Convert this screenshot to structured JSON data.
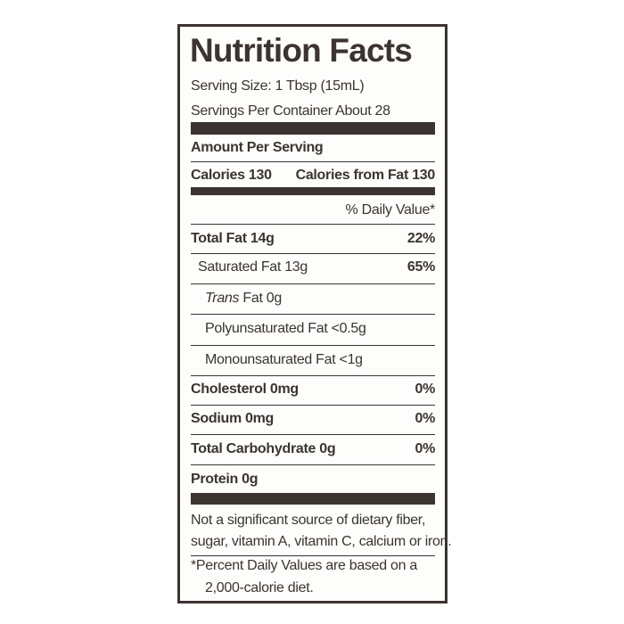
{
  "title": "Nutrition Facts",
  "serving": [
    "Serving Size: 1 Tbsp (15mL)",
    "Servings Per Container About 28"
  ],
  "amount_per_serving": "Amount Per Serving",
  "calories": {
    "label": "Calories 130",
    "from_fat": "Calories from Fat 130"
  },
  "dv_header": "% Daily Value*",
  "rows": [
    {
      "label": "Total Fat 14g",
      "dv": "22%",
      "bold": true,
      "indent": 0
    },
    {
      "label": "Saturated Fat 13g",
      "dv": "65%",
      "bold": false,
      "indent": 1
    },
    {
      "label_italic": "Trans",
      "label": "Fat 0g",
      "bold": false,
      "indent": 2
    },
    {
      "label": "Polyunsaturated Fat <0.5g",
      "bold": false,
      "indent": 2
    },
    {
      "label": "Monounsaturated Fat <1g",
      "bold": false,
      "indent": 2
    },
    {
      "label": "Cholesterol 0mg",
      "dv": "0%",
      "bold": true,
      "indent": 0
    },
    {
      "label": "Sodium 0mg",
      "dv": "0%",
      "bold": true,
      "indent": 0
    },
    {
      "label": "Total Carbohydrate 0g",
      "dv": "0%",
      "bold": true,
      "indent": 0
    },
    {
      "label": "Protein 0g",
      "bold": true,
      "indent": 0
    }
  ],
  "notes": [
    [
      "Not a significant source of dietary fiber,",
      "sugar, vitamin A, vitamin C, calcium or iron."
    ],
    [
      "*Percent Daily Values are based on a",
      "2,000-calorie diet."
    ]
  ]
}
